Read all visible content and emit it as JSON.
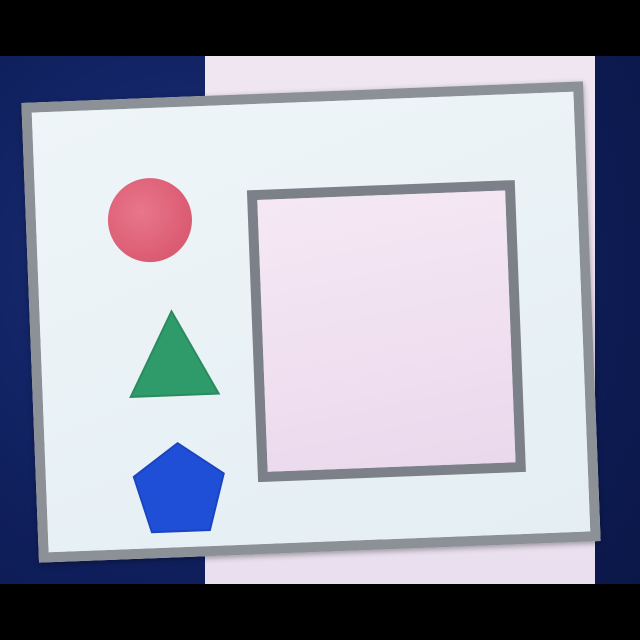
{
  "scene": {
    "description_colors": {
      "background_blue": "#132766",
      "panel_pink": "#ece2f0",
      "card_white": "#e9f1f5",
      "frame_gray": "#8c9097",
      "circle_red": "#dd5f76",
      "triangle_green": "#2f9a6a",
      "pentagon_blue": "#1f4fd6"
    },
    "shapes": [
      {
        "kind": "circle",
        "color": "#dd5f76"
      },
      {
        "kind": "triangle",
        "color": "#2f9a6a"
      },
      {
        "kind": "pentagon",
        "color": "#1f4fd6"
      }
    ]
  }
}
